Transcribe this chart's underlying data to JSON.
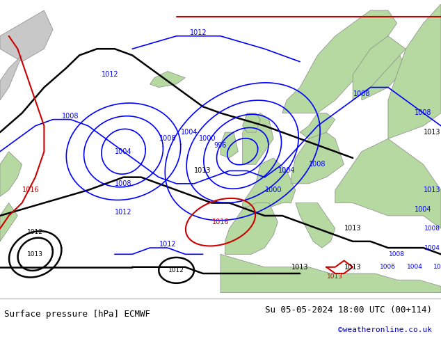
{
  "title_left": "Surface pressure [hPa] ECMWF",
  "title_right": "Su 05-05-2024 18:00 UTC (00+114)",
  "copyright": "©weatheronline.co.uk",
  "land_color": "#b5d9a0",
  "sea_color": "#d8d8d8",
  "deep_sea_color": "#d0d0d0",
  "bottom_bar_color": "#ffffff",
  "text_color": "#000000",
  "copyright_color": "#0000cc",
  "figsize": [
    6.34,
    4.9
  ],
  "dpi": 100,
  "map_extent": [
    -60,
    40,
    30,
    75
  ],
  "blue_color": "#0000ff",
  "black_color": "#000000",
  "red_color": "#cc0000"
}
